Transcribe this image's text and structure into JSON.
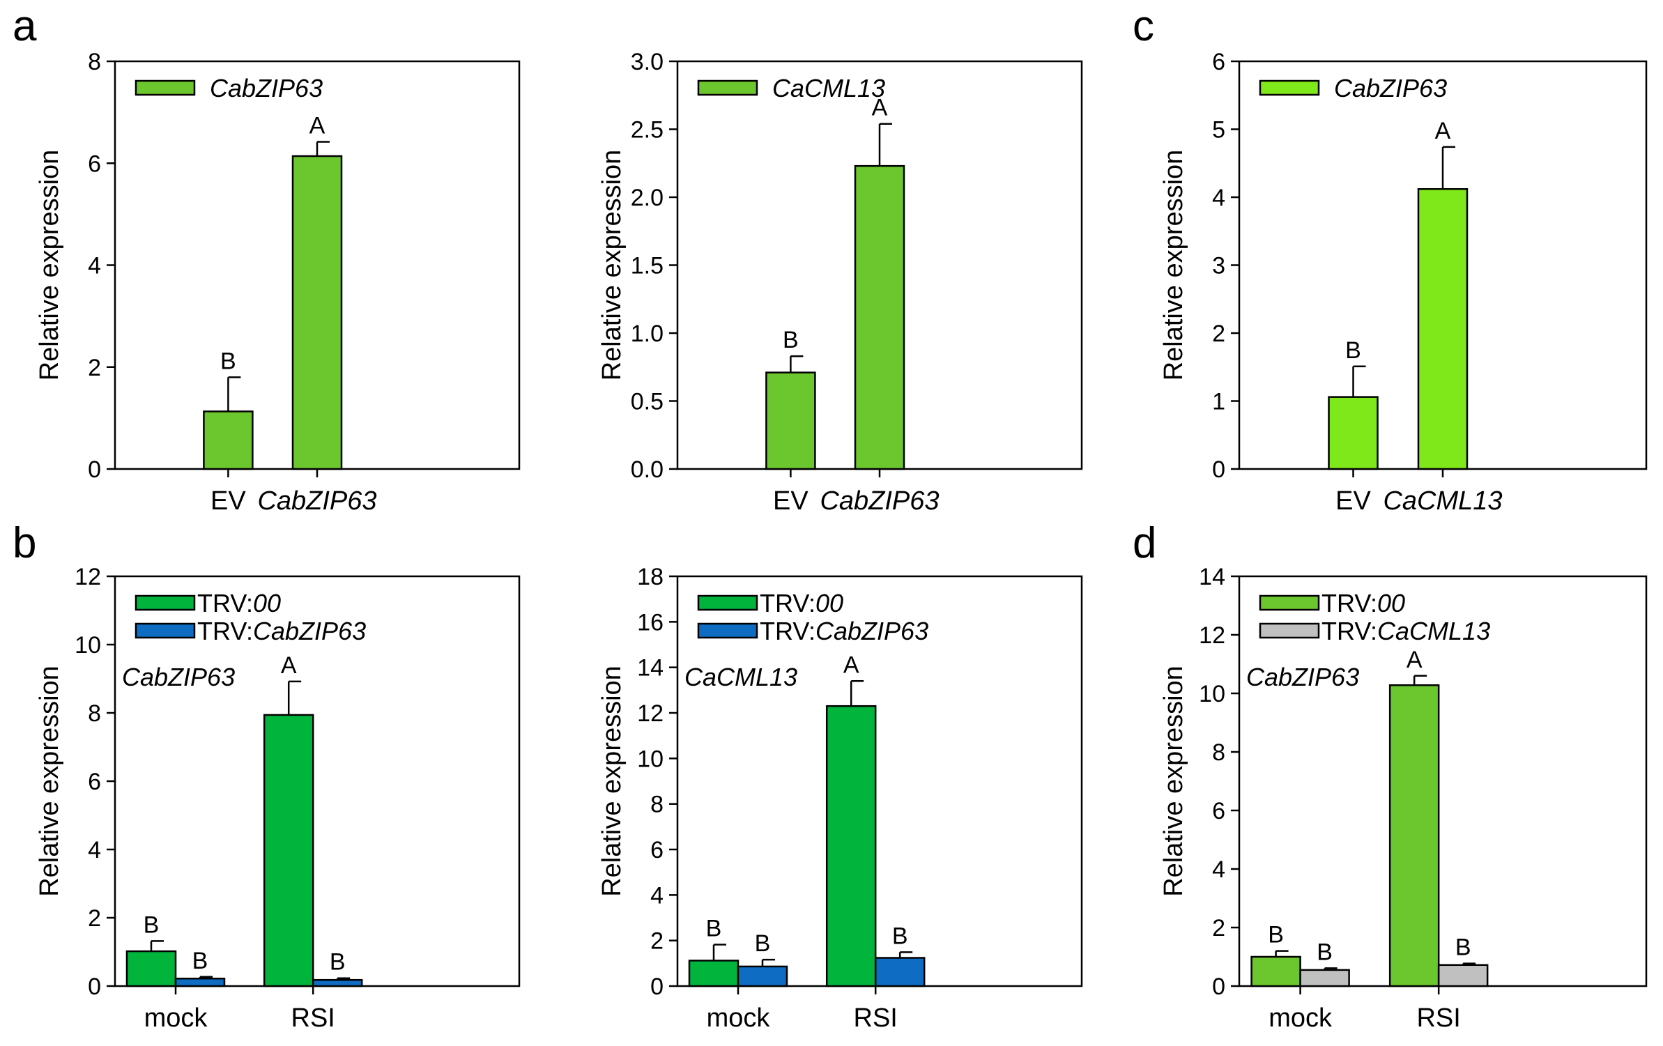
{
  "panel_letters": [
    "a",
    "b",
    "c",
    "d"
  ],
  "chart_data": [
    {
      "type": "bar",
      "panel": "a",
      "ylabel": "Relative expression",
      "ylim": [
        0,
        8
      ],
      "yticks": [
        0,
        2,
        4,
        6,
        8
      ],
      "categories": [
        {
          "text": "EV",
          "italic": false
        },
        {
          "text": "CabZIP63",
          "italic": true
        }
      ],
      "series": [
        {
          "name": "CabZIP63",
          "name_italic": true,
          "color": "#6cc62e",
          "values": [
            1.13,
            6.14
          ],
          "errors": [
            0.67,
            0.28
          ],
          "letters": [
            "B",
            "A"
          ]
        }
      ],
      "annotation": null
    },
    {
      "type": "bar",
      "panel": "a",
      "ylabel": "Relative expression",
      "ylim": [
        0,
        3.0
      ],
      "yticks": [
        "0.0",
        "0.5",
        "1.0",
        "1.5",
        "2.0",
        "2.5",
        "3.0"
      ],
      "categories": [
        {
          "text": "EV",
          "italic": false
        },
        {
          "text": "CabZIP63",
          "italic": true
        }
      ],
      "series": [
        {
          "name": "CaCML13",
          "name_italic": true,
          "color": "#6cc62e",
          "values": [
            0.71,
            2.23
          ],
          "errors": [
            0.12,
            0.31
          ],
          "letters": [
            "B",
            "A"
          ]
        }
      ],
      "annotation": null
    },
    {
      "type": "bar",
      "panel": "c",
      "ylabel": "Relative expression",
      "ylim": [
        0,
        6
      ],
      "yticks": [
        0,
        1,
        2,
        3,
        4,
        5,
        6
      ],
      "categories": [
        {
          "text": "EV",
          "italic": false
        },
        {
          "text": "CaCML13",
          "italic": true
        }
      ],
      "series": [
        {
          "name": "CabZIP63",
          "name_italic": true,
          "color": "#7fe81a",
          "values": [
            1.06,
            4.12
          ],
          "errors": [
            0.45,
            0.62
          ],
          "letters": [
            "B",
            "A"
          ]
        }
      ],
      "annotation": null
    },
    {
      "type": "bar",
      "panel": "b",
      "ylabel": "Relative expression",
      "ylim": [
        0,
        12
      ],
      "yticks": [
        0,
        2,
        4,
        6,
        8,
        10,
        12
      ],
      "categories": [
        {
          "text": "mock",
          "italic": false
        },
        {
          "text": "RSI",
          "italic": false
        }
      ],
      "series": [
        {
          "name_prefix": "TRV:",
          "name": "00",
          "name_italic": true,
          "color": "#00b43c",
          "values": [
            1.02,
            7.94
          ],
          "errors": [
            0.3,
            0.98
          ],
          "letters": [
            "B",
            "A"
          ]
        },
        {
          "name_prefix": "TRV:",
          "name": "CabZIP63",
          "name_italic": true,
          "color": "#0e6cc2",
          "values": [
            0.22,
            0.18
          ],
          "errors": [
            0.05,
            0.05
          ],
          "letters": [
            "B",
            "B"
          ]
        }
      ],
      "annotation": "CabZIP63"
    },
    {
      "type": "bar",
      "panel": "b",
      "ylabel": "Relative expression",
      "ylim": [
        0,
        18
      ],
      "yticks": [
        0,
        2,
        4,
        6,
        8,
        10,
        12,
        14,
        16,
        18
      ],
      "categories": [
        {
          "text": "mock",
          "italic": false
        },
        {
          "text": "RSI",
          "italic": false
        }
      ],
      "series": [
        {
          "name_prefix": "TRV:",
          "name": "00",
          "name_italic": true,
          "color": "#00b43c",
          "values": [
            1.12,
            12.3
          ],
          "errors": [
            0.7,
            1.1
          ],
          "letters": [
            "B",
            "A"
          ]
        },
        {
          "name_prefix": "TRV:",
          "name": "CabZIP63",
          "name_italic": true,
          "color": "#0e6cc2",
          "values": [
            0.86,
            1.24
          ],
          "errors": [
            0.3,
            0.25
          ],
          "letters": [
            "B",
            "B"
          ]
        }
      ],
      "annotation": "CaCML13"
    },
    {
      "type": "bar",
      "panel": "d",
      "ylabel": "Relative expression",
      "ylim": [
        0,
        14
      ],
      "yticks": [
        0,
        2,
        4,
        6,
        8,
        10,
        12,
        14
      ],
      "categories": [
        {
          "text": "mock",
          "italic": false
        },
        {
          "text": "RSI",
          "italic": false
        }
      ],
      "series": [
        {
          "name_prefix": "TRV:",
          "name": "00",
          "name_italic": true,
          "color": "#6cc62e",
          "values": [
            1.0,
            10.28
          ],
          "errors": [
            0.2,
            0.32
          ],
          "letters": [
            "B",
            "A"
          ]
        },
        {
          "name_prefix": "TRV:",
          "name": "CaCML13",
          "name_italic": true,
          "color": "#c0c0c0",
          "values": [
            0.55,
            0.72
          ],
          "errors": [
            0.06,
            0.05
          ],
          "letters": [
            "B",
            "B"
          ]
        }
      ],
      "annotation": "CabZIP63"
    }
  ]
}
